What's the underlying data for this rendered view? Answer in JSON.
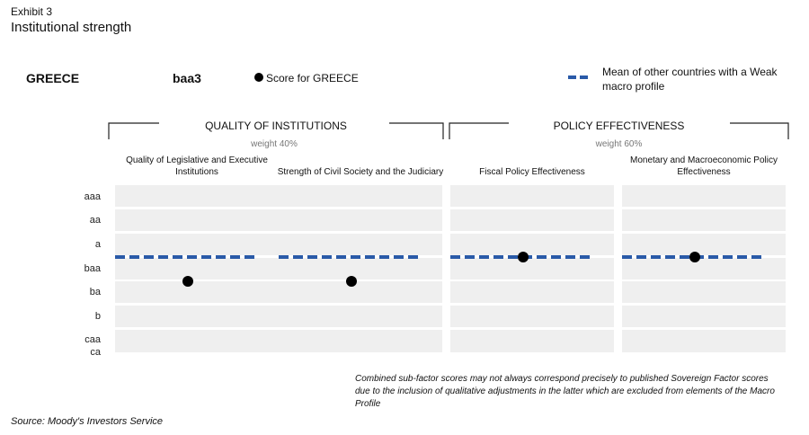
{
  "header": {
    "exhibit": "Exhibit 3",
    "title": "Institutional strength"
  },
  "legend": {
    "country": "GREECE",
    "rating": "baa3",
    "score_label": "Score for GREECE",
    "mean_label": "Mean of other countries with a Weak macro profile",
    "dot_color": "#000000",
    "mean_color": "#2a5aa8"
  },
  "groups": [
    {
      "title": "QUALITY OF INSTITUTIONS",
      "weight": "weight 40%"
    },
    {
      "title": "POLICY EFFECTIVENESS",
      "weight": "weight 60%"
    }
  ],
  "chart_data": {
    "type": "scatter",
    "y_categories": [
      "aaa",
      "aa",
      "a",
      "baa",
      "ba",
      "b",
      "caa",
      "ca"
    ],
    "panels": [
      {
        "label_lines": [
          "Quality of Legislative and Executive",
          "Institutions"
        ],
        "score": "ba",
        "mean": "baa"
      },
      {
        "label_lines": [
          "Strength of Civil Society and the Judiciary"
        ],
        "score": "ba",
        "mean": "baa"
      },
      {
        "label_lines": [
          "Fiscal Policy Effectiveness"
        ],
        "score": "baa",
        "mean": "baa"
      },
      {
        "label_lines": [
          "Monetary and Macroeconomic Policy",
          "Effectiveness"
        ],
        "score": "baa",
        "mean": "baa"
      }
    ],
    "band_color": "#efefef"
  },
  "footer": {
    "note": "Combined sub-factor scores may not always correspond precisely to published Sovereign Factor scores due to the inclusion of qualitative adjustments in the latter which are excluded from elements of the Macro Profile",
    "source": "Source: Moody's Investors Service"
  }
}
